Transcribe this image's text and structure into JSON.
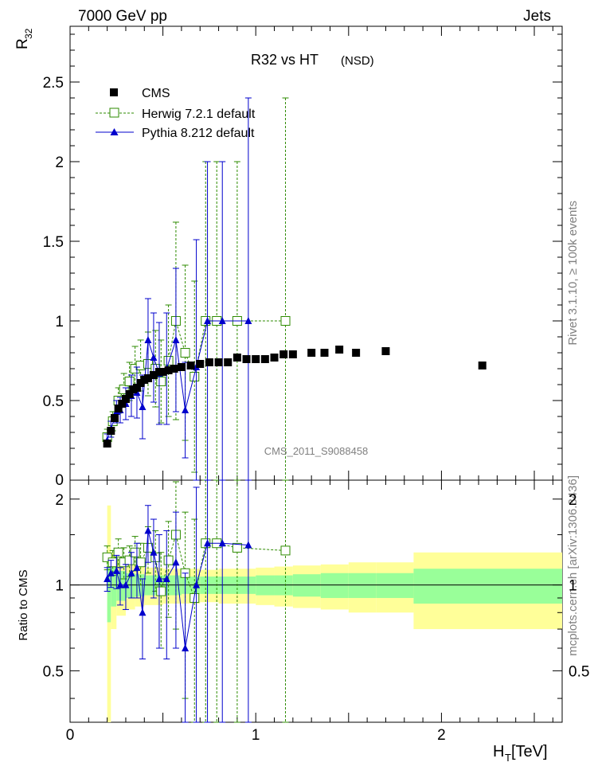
{
  "header": {
    "left": "7000 GeV pp",
    "right": "Jets"
  },
  "side": {
    "rivet": "Rivet 3.1.10, ≥ 100k events",
    "mcplots": "mcplots.cern.ch [arXiv:1306.3436]"
  },
  "plot_title": "R32 vs HT",
  "plot_subtitle": "(NSD)",
  "watermark": "CMS_2011_S9088458",
  "ylabel_main_base": "R",
  "ylabel_main_sub": "32",
  "ylabel_ratio": "Ratio to CMS",
  "xlabel_base": "H",
  "xlabel_sub": "T",
  "xlabel_unit": " [TeV]",
  "legend": {
    "cms": "CMS",
    "herwig": "Herwig 7.2.1 default",
    "pythia": "Pythia 8.212 default"
  },
  "colors": {
    "cms": "#000000",
    "herwig": "#2e8b00",
    "pythia": "#0000cc",
    "band_inner": "#99ff99",
    "band_outer": "#ffff99"
  },
  "chart_data": [
    {
      "type": "scatter",
      "title": "R32 vs HT",
      "xlabel": "H_T [TeV]",
      "ylabel": "R_32",
      "xlim": [
        0,
        2.65
      ],
      "ylim": [
        0,
        2.85
      ],
      "yticks": [
        "0.5",
        "1",
        "1.5",
        "2",
        "2.5"
      ],
      "ytick_values": [
        0.5,
        1,
        1.5,
        2,
        2.5
      ],
      "yzero_label": "0",
      "xticks": [
        "0",
        "1",
        "2"
      ],
      "xtick_values": [
        0,
        1,
        2
      ],
      "series": [
        {
          "name": "CMS",
          "x": [
            0.2,
            0.22,
            0.24,
            0.26,
            0.28,
            0.3,
            0.32,
            0.34,
            0.36,
            0.38,
            0.4,
            0.42,
            0.45,
            0.48,
            0.5,
            0.53,
            0.56,
            0.6,
            0.65,
            0.7,
            0.75,
            0.8,
            0.85,
            0.9,
            0.95,
            1.0,
            1.05,
            1.1,
            1.15,
            1.2,
            1.3,
            1.37,
            1.45,
            1.54,
            1.7,
            2.22
          ],
          "y": [
            0.23,
            0.31,
            0.39,
            0.45,
            0.48,
            0.51,
            0.54,
            0.57,
            0.58,
            0.61,
            0.63,
            0.64,
            0.66,
            0.68,
            0.68,
            0.69,
            0.7,
            0.71,
            0.72,
            0.73,
            0.74,
            0.74,
            0.74,
            0.77,
            0.76,
            0.76,
            0.76,
            0.77,
            0.79,
            0.79,
            0.8,
            0.8,
            0.82,
            0.8,
            0.81,
            0.72
          ]
        },
        {
          "name": "Herwig 7.2.1 default",
          "x": [
            0.2,
            0.23,
            0.26,
            0.29,
            0.32,
            0.35,
            0.38,
            0.42,
            0.46,
            0.49,
            0.53,
            0.57,
            0.62,
            0.67,
            0.73,
            0.79,
            0.9,
            1.16
          ],
          "y": [
            0.27,
            0.37,
            0.5,
            0.57,
            0.62,
            0.7,
            0.72,
            0.73,
            0.7,
            0.62,
            0.75,
            1.0,
            0.8,
            0.65,
            1.0,
            1.0,
            1.0,
            1.0
          ],
          "yerr": [
            0.05,
            0.06,
            0.08,
            0.1,
            0.12,
            0.14,
            0.16,
            0.2,
            0.24,
            0.26,
            0.35,
            0.62,
            0.55,
            0.6,
            1.0,
            1.0,
            1.0,
            1.4
          ]
        },
        {
          "name": "Pythia 8.212 default",
          "x": [
            0.2,
            0.22,
            0.25,
            0.27,
            0.3,
            0.33,
            0.36,
            0.39,
            0.42,
            0.45,
            0.48,
            0.52,
            0.57,
            0.62,
            0.68,
            0.74,
            0.82,
            0.96
          ],
          "y": [
            0.25,
            0.32,
            0.43,
            0.44,
            0.48,
            0.53,
            0.55,
            0.46,
            0.88,
            0.77,
            0.67,
            0.7,
            0.88,
            0.44,
            0.71,
            1.0,
            1.0,
            1.0
          ],
          "yerr": [
            0.04,
            0.05,
            0.07,
            0.08,
            0.1,
            0.13,
            0.16,
            0.2,
            0.26,
            0.28,
            0.32,
            0.35,
            0.45,
            0.3,
            0.8,
            1.0,
            1.0,
            1.4
          ]
        }
      ]
    },
    {
      "type": "scatter",
      "title": "Ratio to CMS",
      "ylabel": "Ratio to CMS",
      "xlim": [
        0,
        2.65
      ],
      "ylim": [
        0.33,
        2.33
      ],
      "yticks": [
        "0.5",
        "1",
        "2"
      ],
      "ytick_values": [
        0.5,
        1,
        2
      ],
      "xticks": [
        "0",
        "1",
        "2"
      ],
      "xtick_values": [
        0,
        1,
        2
      ],
      "band_edges": [
        0.2,
        0.22,
        0.25,
        0.3,
        0.35,
        0.4,
        0.5,
        0.6,
        0.7,
        0.8,
        0.9,
        1.0,
        1.1,
        1.2,
        1.35,
        1.5,
        1.65,
        1.85,
        2.65
      ],
      "band_inner": [
        0.26,
        0.16,
        0.12,
        0.1,
        0.09,
        0.08,
        0.08,
        0.07,
        0.07,
        0.07,
        0.07,
        0.08,
        0.08,
        0.09,
        0.1,
        0.1,
        0.1,
        0.14
      ],
      "band_outer": [
        0.9,
        0.3,
        0.22,
        0.18,
        0.16,
        0.15,
        0.14,
        0.14,
        0.13,
        0.14,
        0.14,
        0.15,
        0.16,
        0.17,
        0.18,
        0.2,
        0.2,
        0.3
      ],
      "series": [
        {
          "name": "Herwig 7.2.1 default",
          "x": [
            0.2,
            0.23,
            0.26,
            0.29,
            0.32,
            0.35,
            0.38,
            0.42,
            0.46,
            0.49,
            0.53,
            0.57,
            0.62,
            0.67,
            0.73,
            0.79,
            0.9,
            1.16
          ],
          "y": [
            1.25,
            1.2,
            1.3,
            1.2,
            1.22,
            1.3,
            1.2,
            1.35,
            1.25,
            0.95,
            1.22,
            1.5,
            1.1,
            0.9,
            1.4,
            1.4,
            1.35,
            1.32
          ],
          "yerr": [
            0.12,
            0.12,
            0.15,
            0.15,
            0.15,
            0.18,
            0.2,
            0.25,
            0.3,
            0.35,
            0.45,
            0.8,
            0.7,
            0.8,
            1.2,
            1.2,
            1.1,
            1.2
          ]
        },
        {
          "name": "Pythia 8.212 default",
          "x": [
            0.2,
            0.22,
            0.25,
            0.27,
            0.3,
            0.33,
            0.36,
            0.39,
            0.42,
            0.45,
            0.48,
            0.52,
            0.57,
            0.62,
            0.68,
            0.74,
            0.82,
            0.96
          ],
          "y": [
            1.05,
            1.1,
            1.12,
            1.0,
            1.0,
            1.1,
            1.15,
            0.8,
            1.55,
            1.3,
            1.05,
            1.05,
            1.2,
            0.6,
            1.0,
            1.4,
            1.4,
            1.38
          ],
          "yerr": [
            0.1,
            0.12,
            0.15,
            0.15,
            0.18,
            0.2,
            0.25,
            0.25,
            0.35,
            0.4,
            0.45,
            0.5,
            0.6,
            0.5,
            1.2,
            1.5,
            1.5,
            1.5
          ]
        }
      ]
    }
  ]
}
